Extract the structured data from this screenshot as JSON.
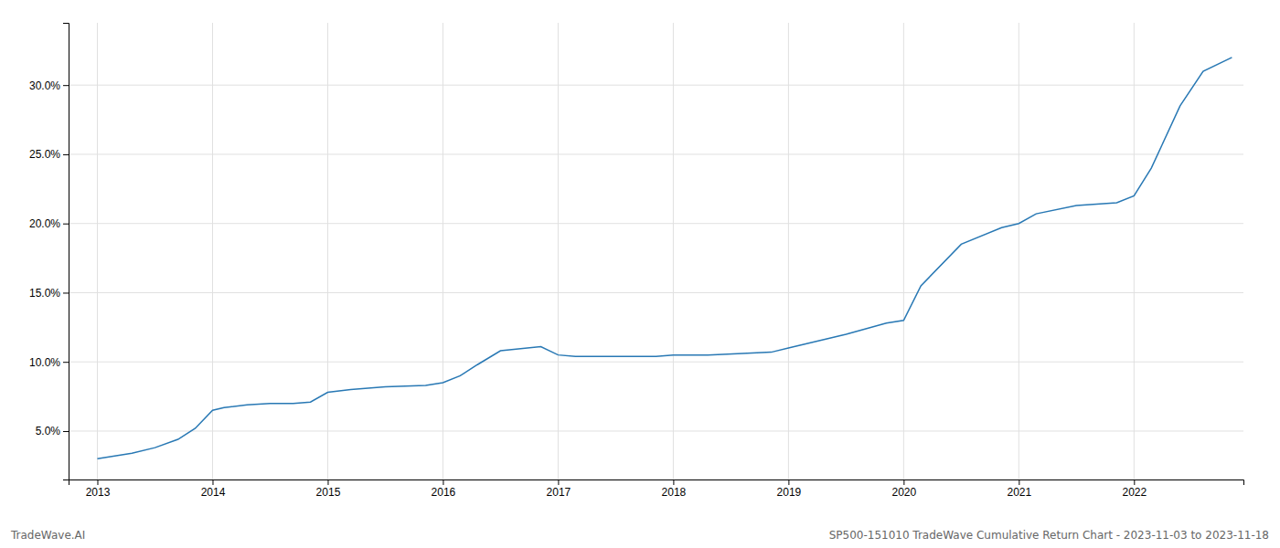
{
  "chart_data": {
    "type": "line",
    "x": [
      2013.0,
      2013.15,
      2013.3,
      2013.5,
      2013.7,
      2013.85,
      2014.0,
      2014.1,
      2014.3,
      2014.5,
      2014.7,
      2014.85,
      2015.0,
      2015.2,
      2015.5,
      2015.85,
      2016.0,
      2016.15,
      2016.3,
      2016.5,
      2016.85,
      2017.0,
      2017.15,
      2017.5,
      2017.85,
      2018.0,
      2018.3,
      2018.6,
      2018.85,
      2019.0,
      2019.15,
      2019.5,
      2019.85,
      2020.0,
      2020.15,
      2020.5,
      2020.85,
      2021.0,
      2021.15,
      2021.5,
      2021.85,
      2022.0,
      2022.15,
      2022.4,
      2022.6,
      2022.85
    ],
    "values": [
      0.03,
      0.032,
      0.034,
      0.038,
      0.044,
      0.052,
      0.065,
      0.067,
      0.069,
      0.07,
      0.07,
      0.071,
      0.078,
      0.08,
      0.082,
      0.083,
      0.085,
      0.09,
      0.098,
      0.108,
      0.111,
      0.105,
      0.104,
      0.104,
      0.104,
      0.105,
      0.105,
      0.106,
      0.107,
      0.11,
      0.113,
      0.12,
      0.128,
      0.13,
      0.155,
      0.185,
      0.197,
      0.2,
      0.207,
      0.213,
      0.215,
      0.22,
      0.24,
      0.285,
      0.31,
      0.32
    ],
    "color": "#2878b4",
    "xlim": [
      2012.75,
      2022.95
    ],
    "xticks": [
      2013,
      2014,
      2015,
      2016,
      2017,
      2018,
      2019,
      2020,
      2021,
      2022
    ],
    "ylim": [
      0.015,
      0.345
    ],
    "yticks": [
      {
        "value": 0.05,
        "label": "5.0%"
      },
      {
        "value": 0.1,
        "label": "10.0%"
      },
      {
        "value": 0.15,
        "label": "15.0%"
      },
      {
        "value": 0.2,
        "label": "20.0%"
      },
      {
        "value": 0.25,
        "label": "25.0%"
      },
      {
        "value": 0.3,
        "label": "30.0%"
      }
    ],
    "grid": true,
    "annotations": [
      "TradeWave.AI",
      "SP500-151010 TradeWave Cumulative Return Chart - 2023-11-03 to 2023-11-18"
    ]
  }
}
